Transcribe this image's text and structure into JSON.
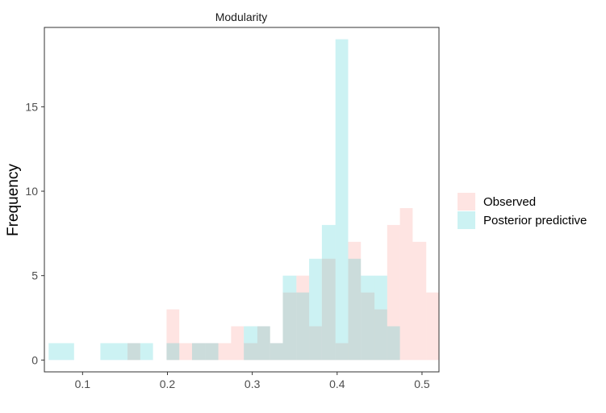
{
  "chart_data": {
    "type": "histogram",
    "title": "Modularity",
    "xlabel": "",
    "ylabel": "Frequency",
    "xlim": [
      0.055,
      0.52
    ],
    "ylim": [
      -0.7,
      19.7
    ],
    "x_ticks": [
      0.1,
      0.2,
      0.3,
      0.4,
      0.5
    ],
    "x_tick_labels": [
      "0.1",
      "0.2",
      "0.3",
      "0.4",
      "0.5"
    ],
    "y_ticks": [
      0,
      5,
      10,
      15
    ],
    "y_tick_labels": [
      "0",
      "5",
      "10",
      "15"
    ],
    "grid": false,
    "legend_position": "right",
    "series": [
      {
        "name": "Observed",
        "color": "#F8766D",
        "bins": [
          {
            "x0": 0.153,
            "x1": 0.168,
            "count": 1
          },
          {
            "x0": 0.199,
            "x1": 0.214,
            "count": 3
          },
          {
            "x0": 0.214,
            "x1": 0.229,
            "count": 1
          },
          {
            "x0": 0.229,
            "x1": 0.245,
            "count": 1
          },
          {
            "x0": 0.245,
            "x1": 0.26,
            "count": 1
          },
          {
            "x0": 0.26,
            "x1": 0.275,
            "count": 1
          },
          {
            "x0": 0.275,
            "x1": 0.29,
            "count": 2
          },
          {
            "x0": 0.29,
            "x1": 0.306,
            "count": 1
          },
          {
            "x0": 0.306,
            "x1": 0.321,
            "count": 2
          },
          {
            "x0": 0.321,
            "x1": 0.336,
            "count": 1
          },
          {
            "x0": 0.336,
            "x1": 0.352,
            "count": 4
          },
          {
            "x0": 0.352,
            "x1": 0.367,
            "count": 5
          },
          {
            "x0": 0.367,
            "x1": 0.382,
            "count": 2
          },
          {
            "x0": 0.382,
            "x1": 0.398,
            "count": 6
          },
          {
            "x0": 0.398,
            "x1": 0.413,
            "count": 1
          },
          {
            "x0": 0.413,
            "x1": 0.428,
            "count": 7
          },
          {
            "x0": 0.428,
            "x1": 0.444,
            "count": 4
          },
          {
            "x0": 0.444,
            "x1": 0.459,
            "count": 3
          },
          {
            "x0": 0.459,
            "x1": 0.474,
            "count": 8
          },
          {
            "x0": 0.474,
            "x1": 0.489,
            "count": 9
          },
          {
            "x0": 0.489,
            "x1": 0.505,
            "count": 7
          },
          {
            "x0": 0.505,
            "x1": 0.52,
            "count": 4
          }
        ]
      },
      {
        "name": "Posterior predictive",
        "color": "#00BFC4",
        "bins": [
          {
            "x0": 0.06,
            "x1": 0.09,
            "count": 1
          },
          {
            "x0": 0.121,
            "x1": 0.153,
            "count": 1
          },
          {
            "x0": 0.153,
            "x1": 0.168,
            "count": 1
          },
          {
            "x0": 0.168,
            "x1": 0.183,
            "count": 1
          },
          {
            "x0": 0.199,
            "x1": 0.214,
            "count": 1
          },
          {
            "x0": 0.229,
            "x1": 0.26,
            "count": 1
          },
          {
            "x0": 0.29,
            "x1": 0.306,
            "count": 2
          },
          {
            "x0": 0.306,
            "x1": 0.321,
            "count": 2
          },
          {
            "x0": 0.321,
            "x1": 0.336,
            "count": 1
          },
          {
            "x0": 0.336,
            "x1": 0.352,
            "count": 5
          },
          {
            "x0": 0.352,
            "x1": 0.367,
            "count": 4
          },
          {
            "x0": 0.367,
            "x1": 0.382,
            "count": 6
          },
          {
            "x0": 0.382,
            "x1": 0.398,
            "count": 8
          },
          {
            "x0": 0.398,
            "x1": 0.413,
            "count": 19
          },
          {
            "x0": 0.413,
            "x1": 0.428,
            "count": 6
          },
          {
            "x0": 0.428,
            "x1": 0.444,
            "count": 5
          },
          {
            "x0": 0.444,
            "x1": 0.459,
            "count": 5
          },
          {
            "x0": 0.459,
            "x1": 0.474,
            "count": 2
          }
        ]
      }
    ]
  }
}
